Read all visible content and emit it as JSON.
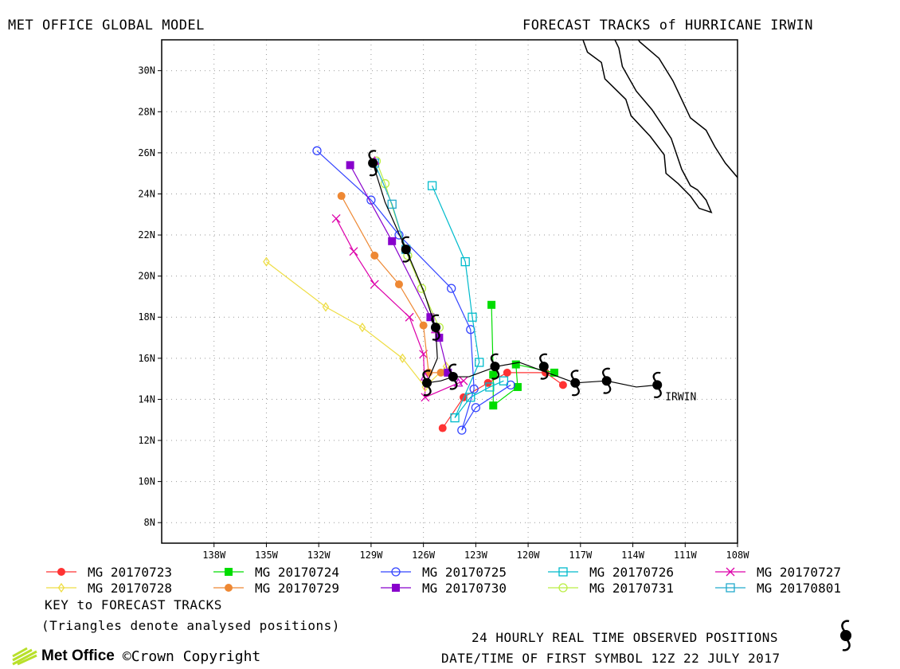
{
  "header": {
    "left": "MET OFFICE GLOBAL MODEL",
    "right": "FORECAST TRACKS of HURRICANE IRWIN"
  },
  "footer": {
    "key_title": "KEY to FORECAST TRACKS",
    "triangles_note": "(Triangles denote analysed positions)",
    "observed_note": "24 HOURLY REAL TIME OBSERVED POSITIONS",
    "datetime_note": "DATE/TIME OF FIRST SYMBOL 12Z 22 JULY 2017",
    "brand": "Met Office",
    "copyright": "©Crown Copyright"
  },
  "chart_data": {
    "type": "line",
    "title": "FORECAST TRACKS of HURRICANE IRWIN",
    "xlim": [
      -141,
      -108
    ],
    "ylim": [
      7,
      31.5
    ],
    "x_ticks": [
      -138,
      -135,
      -132,
      -129,
      -126,
      -123,
      -120,
      -117,
      -114,
      -111,
      -108
    ],
    "x_tick_labels": [
      "138W",
      "135W",
      "132W",
      "129W",
      "126W",
      "123W",
      "120W",
      "117W",
      "114W",
      "111W",
      "108W"
    ],
    "y_ticks": [
      8,
      10,
      12,
      14,
      16,
      18,
      20,
      22,
      24,
      26,
      28,
      30
    ],
    "y_tick_labels": [
      "8N",
      "10N",
      "12N",
      "14N",
      "16N",
      "18N",
      "20N",
      "22N",
      "24N",
      "26N",
      "28N",
      "30N"
    ],
    "grid": true,
    "storm_label": "IRWIN",
    "observed_track": [
      [
        -112.6,
        14.7
      ],
      [
        -113.8,
        14.6
      ],
      [
        -115.5,
        14.9
      ],
      [
        -117.3,
        14.8
      ],
      [
        -118.9,
        15.3
      ],
      [
        -120.5,
        15.8
      ],
      [
        -121.8,
        15.6
      ],
      [
        -123.4,
        15.1
      ],
      [
        -124.3,
        15.1
      ],
      [
        -125.0,
        14.9
      ],
      [
        -125.8,
        14.8
      ],
      [
        -125.6,
        15.2
      ],
      [
        -125.2,
        16.0
      ],
      [
        -125.3,
        17.5
      ],
      [
        -126.0,
        19.3
      ],
      [
        -127.0,
        21.3
      ],
      [
        -128.2,
        23.6
      ],
      [
        -128.9,
        25.5
      ]
    ],
    "observed_symbols": [
      [
        -112.6,
        14.7
      ],
      [
        -115.5,
        14.9
      ],
      [
        -117.3,
        14.8
      ],
      [
        -119.1,
        15.6
      ],
      [
        -121.9,
        15.6
      ],
      [
        -124.3,
        15.1
      ],
      [
        -125.8,
        14.8
      ],
      [
        -125.3,
        17.5
      ],
      [
        -127.0,
        21.3
      ],
      [
        -128.9,
        25.5
      ]
    ],
    "series": [
      {
        "name": "MG 20170723",
        "color": "#ff3333",
        "marker": "filled-circle",
        "points": [
          [
            -118.0,
            14.7
          ],
          [
            -119.0,
            15.3
          ],
          [
            -121.2,
            15.3
          ],
          [
            -122.3,
            14.8
          ],
          [
            -123.7,
            14.1
          ],
          [
            -124.9,
            12.6
          ]
        ]
      },
      {
        "name": "MG 20170724",
        "color": "#00dd00",
        "marker": "filled-square",
        "points": [
          [
            -118.5,
            15.3
          ],
          [
            -120.7,
            15.7
          ],
          [
            -120.6,
            14.6
          ],
          [
            -122.0,
            13.7
          ],
          [
            -122.0,
            15.2
          ],
          [
            -122.1,
            18.6
          ]
        ]
      },
      {
        "name": "MG 20170725",
        "color": "#3344ff",
        "marker": "open-circle",
        "points": [
          [
            -121.0,
            14.7
          ],
          [
            -123.0,
            13.6
          ],
          [
            -123.8,
            12.5
          ],
          [
            -123.1,
            14.5
          ],
          [
            -123.3,
            17.4
          ],
          [
            -124.4,
            19.4
          ],
          [
            -127.4,
            22.0
          ],
          [
            -129.0,
            23.7
          ],
          [
            -132.1,
            26.1
          ]
        ]
      },
      {
        "name": "MG 20170726",
        "color": "#00bbcc",
        "marker": "open-square",
        "points": [
          [
            -121.4,
            14.9
          ],
          [
            -122.2,
            14.6
          ],
          [
            -123.3,
            14.1
          ],
          [
            -124.2,
            13.1
          ],
          [
            -122.8,
            15.8
          ],
          [
            -123.2,
            18.0
          ],
          [
            -123.6,
            20.7
          ],
          [
            -125.5,
            24.4
          ]
        ]
      },
      {
        "name": "MG 20170727",
        "color": "#dd00aa",
        "marker": "cross",
        "points": [
          [
            -123.7,
            14.9
          ],
          [
            -125.9,
            14.1
          ],
          [
            -126.0,
            16.2
          ],
          [
            -126.8,
            18.0
          ],
          [
            -128.8,
            19.6
          ],
          [
            -130.0,
            21.2
          ],
          [
            -131.0,
            22.8
          ]
        ]
      },
      {
        "name": "MG 20170728",
        "color": "#eedd44",
        "marker": "open-diamond",
        "points": [
          [
            -124.7,
            15.6
          ],
          [
            -125.9,
            14.6
          ],
          [
            -127.2,
            16.0
          ],
          [
            -129.5,
            17.5
          ],
          [
            -131.6,
            18.5
          ],
          [
            -135.0,
            20.7
          ]
        ]
      },
      {
        "name": "MG 20170729",
        "color": "#ee8833",
        "marker": "filled-circle",
        "points": [
          [
            -125.0,
            15.3
          ],
          [
            -125.7,
            15.3
          ],
          [
            -126.0,
            17.6
          ],
          [
            -127.4,
            19.6
          ],
          [
            -128.8,
            21.0
          ],
          [
            -130.7,
            23.9
          ]
        ]
      },
      {
        "name": "MG 20170730",
        "color": "#8800cc",
        "marker": "filled-square",
        "points": [
          [
            -124.6,
            15.3
          ],
          [
            -125.1,
            17.0
          ],
          [
            -125.6,
            18.0
          ],
          [
            -127.8,
            21.7
          ],
          [
            -130.2,
            25.4
          ]
        ]
      },
      {
        "name": "MG 20170731",
        "color": "#bbee44",
        "marker": "open-circle",
        "points": [
          [
            -125.1,
            17.5
          ],
          [
            -126.1,
            19.4
          ],
          [
            -126.9,
            21.0
          ],
          [
            -128.2,
            24.5
          ],
          [
            -128.7,
            25.6
          ]
        ]
      },
      {
        "name": "MG 20170801",
        "color": "#22aacc",
        "marker": "open-square",
        "points": [
          [
            -127.0,
            21.3
          ],
          [
            -127.8,
            23.5
          ],
          [
            -128.8,
            25.5
          ]
        ]
      }
    ],
    "analysed_positions": [
      [
        -125.3,
        17.4
      ],
      [
        -125.9,
        15.1
      ],
      [
        -124.0,
        14.8
      ],
      [
        -128.8,
        25.6
      ]
    ],
    "coastline": [
      [
        [
          -117.3,
          32.5
        ],
        [
          -116.9,
          31.6
        ],
        [
          -116.6,
          30.9
        ],
        [
          -115.8,
          30.4
        ],
        [
          -115.6,
          29.6
        ],
        [
          -114.4,
          28.6
        ],
        [
          -114.1,
          27.8
        ],
        [
          -113.0,
          26.8
        ],
        [
          -112.2,
          25.9
        ],
        [
          -112.1,
          25.0
        ],
        [
          -111.4,
          24.5
        ],
        [
          -110.7,
          23.9
        ],
        [
          -110.2,
          23.3
        ],
        [
          -109.5,
          23.1
        ],
        [
          -109.8,
          23.7
        ],
        [
          -110.3,
          24.2
        ],
        [
          -110.7,
          24.4
        ],
        [
          -111.2,
          25.2
        ],
        [
          -111.8,
          26.7
        ],
        [
          -112.9,
          28.1
        ],
        [
          -113.8,
          29.0
        ],
        [
          -114.6,
          30.2
        ],
        [
          -114.8,
          31.1
        ],
        [
          -115.2,
          31.8
        ]
      ],
      [
        [
          -114.5,
          32.5
        ],
        [
          -113.6,
          31.4
        ],
        [
          -112.5,
          30.6
        ],
        [
          -111.7,
          29.5
        ],
        [
          -110.7,
          27.7
        ],
        [
          -109.8,
          27.1
        ],
        [
          -109.3,
          26.3
        ],
        [
          -108.7,
          25.5
        ],
        [
          -108.0,
          24.8
        ],
        [
          -107.6,
          24.4
        ],
        [
          -107.0,
          23.8
        ]
      ]
    ],
    "legend_placement": "bottom"
  }
}
